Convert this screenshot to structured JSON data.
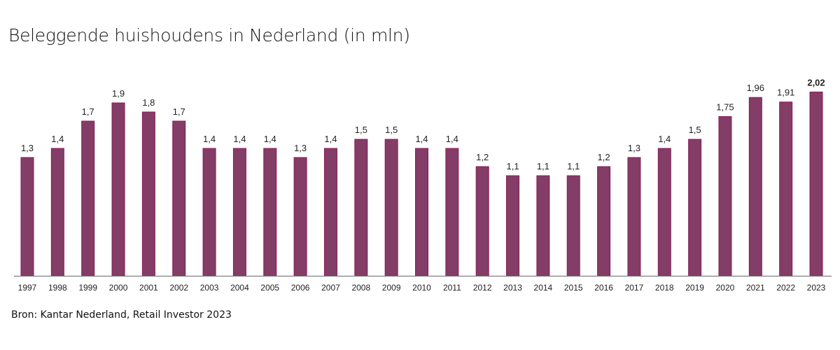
{
  "chart_data": {
    "type": "bar",
    "title": "Beleggende huishoudens in Nederland (in mln)",
    "source": "Bron: Kantar Nederland, Retail Investor 2023",
    "categories": [
      "1997",
      "1998",
      "1999",
      "2000",
      "2001",
      "2002",
      "2003",
      "2004",
      "2005",
      "2006",
      "2007",
      "2008",
      "2009",
      "2010",
      "2011",
      "2012",
      "2013",
      "2014",
      "2015",
      "2016",
      "2017",
      "2018",
      "2019",
      "2020",
      "2021",
      "2022",
      "2023"
    ],
    "values": [
      1.3,
      1.4,
      1.7,
      1.9,
      1.8,
      1.7,
      1.4,
      1.4,
      1.4,
      1.3,
      1.4,
      1.5,
      1.5,
      1.4,
      1.4,
      1.2,
      1.1,
      1.1,
      1.1,
      1.2,
      1.3,
      1.4,
      1.5,
      1.75,
      1.96,
      1.91,
      2.02
    ],
    "value_labels": [
      "1,3",
      "1,4",
      "1,7",
      "1,9",
      "1,8",
      "1,7",
      "1,4",
      "1,4",
      "1,4",
      "1,3",
      "1,4",
      "1,5",
      "1,5",
      "1,4",
      "1,4",
      "1,2",
      "1,1",
      "1,1",
      "1,1",
      "1,2",
      "1,3",
      "1,4",
      "1,5",
      "1,75",
      "1,96",
      "1,91",
      "2,02"
    ],
    "highlighted_label": "2023",
    "xlabel": "",
    "ylabel": "",
    "ylim": [
      0,
      2.1
    ],
    "grid": false,
    "bar_color": "#833d66",
    "bar_border_color": "#8a1a58",
    "axis_color": "#808080"
  }
}
